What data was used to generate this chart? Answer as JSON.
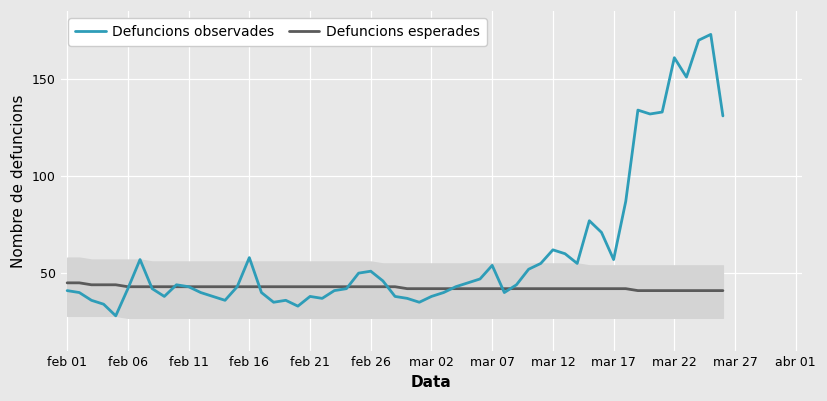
{
  "title": "",
  "xlabel": "Data",
  "ylabel": "Nombre de defuncions",
  "observed_color": "#2e9db8",
  "expected_color": "#5a5a5a",
  "band_color": "#cccccc",
  "background_color": "#e8e8e8",
  "legend_observed": "Defuncions observades",
  "legend_expected": "Defuncions esperades",
  "observed": [
    41,
    40,
    36,
    34,
    28,
    42,
    57,
    42,
    38,
    44,
    43,
    40,
    38,
    36,
    43,
    58,
    40,
    35,
    36,
    33,
    38,
    37,
    41,
    42,
    50,
    51,
    46,
    38,
    37,
    35,
    38,
    40,
    43,
    45,
    47,
    54,
    40,
    44,
    52,
    55,
    62,
    60,
    55,
    77,
    71,
    57,
    87,
    134,
    132,
    133,
    161,
    151,
    170,
    173,
    131
  ],
  "expected": [
    45,
    45,
    44,
    44,
    44,
    43,
    43,
    43,
    43,
    43,
    43,
    43,
    43,
    43,
    43,
    43,
    43,
    43,
    43,
    43,
    43,
    43,
    43,
    43,
    43,
    43,
    43,
    43,
    42,
    42,
    42,
    42,
    42,
    42,
    42,
    42,
    42,
    42,
    42,
    42,
    42,
    42,
    42,
    42,
    42,
    42,
    42,
    41,
    41,
    41,
    41,
    41,
    41,
    41,
    41
  ],
  "expected_upper": [
    58,
    58,
    57,
    57,
    57,
    57,
    57,
    56,
    56,
    56,
    56,
    56,
    56,
    56,
    56,
    56,
    56,
    56,
    56,
    56,
    56,
    56,
    56,
    56,
    56,
    56,
    55,
    55,
    55,
    55,
    55,
    55,
    55,
    55,
    55,
    55,
    55,
    55,
    55,
    55,
    55,
    55,
    55,
    54,
    54,
    54,
    54,
    54,
    54,
    54,
    54,
    54,
    54,
    54,
    54
  ],
  "expected_lower": [
    28,
    28,
    28,
    28,
    28,
    27,
    27,
    27,
    27,
    27,
    27,
    27,
    27,
    27,
    27,
    27,
    27,
    27,
    27,
    27,
    27,
    27,
    27,
    27,
    27,
    27,
    27,
    27,
    27,
    27,
    27,
    27,
    27,
    27,
    27,
    27,
    27,
    27,
    27,
    27,
    27,
    27,
    27,
    27,
    27,
    27,
    27,
    27,
    27,
    27,
    27,
    27,
    27,
    27,
    27
  ],
  "yticks": [
    50,
    100,
    150
  ],
  "ylim": [
    10,
    185
  ],
  "xtick_labels": [
    "feb 01",
    "feb 06",
    "feb 11",
    "feb 16",
    "feb 21",
    "feb 26",
    "mar 02",
    "mar 07",
    "mar 12",
    "mar 17",
    "mar 22",
    "mar 27",
    "abr 01"
  ],
  "xtick_positions": [
    0,
    5,
    10,
    15,
    20,
    25,
    30,
    35,
    40,
    45,
    50,
    55,
    60
  ],
  "line_width": 2.0,
  "legend_fontsize": 10,
  "axis_fontsize": 11,
  "tick_fontsize": 9
}
